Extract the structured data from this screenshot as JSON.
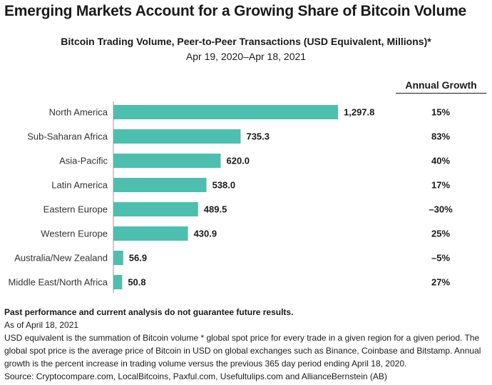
{
  "title": "Emerging Markets Account for a Growing Share of Bitcoin Volume",
  "growth_header": "Annual Growth",
  "colors": {
    "bar": "#4dbfae"
  },
  "chart_data": {
    "type": "bar",
    "orientation": "horizontal",
    "title": "Bitcoin Trading Volume, Peer-to-Peer Transactions (USD Equivalent, Millions)*",
    "subtitle": "Apr 19, 2020–Apr 18, 2021",
    "categories": [
      "North America",
      "Sub-Saharan Africa",
      "Asia-Pacific",
      "Latin America",
      "Eastern Europe",
      "Western Europe",
      "Australia/New Zealand",
      "Middle East/North Africa"
    ],
    "values": [
      1297.8,
      735.3,
      620.0,
      538.0,
      489.5,
      430.9,
      56.9,
      50.8
    ],
    "value_labels": [
      "1,297.8",
      "735.3",
      "620.0",
      "538.0",
      "489.5",
      "430.9",
      "56.9",
      "50.8"
    ],
    "annual_growth": [
      "15%",
      "83%",
      "40%",
      "17%",
      "–30%",
      "25%",
      "–5%",
      "27%"
    ],
    "xlim": [
      0,
      1297.8
    ]
  },
  "notes": {
    "disclaimer": "Past performance and current analysis do not guarantee future results.",
    "as_of": "As of April 18, 2021",
    "footnote": "USD equivalent is the summation of Bitcoin volume * global spot price for every trade in a given region for a given period. The global spot price is the average price of Bitcoin in USD on global exchanges such as Binance, Coinbase and Bitstamp. Annual growth is the percent increase in trading volume versus the previous 365 day period ending April 18, 2020.",
    "source": "Source: Cryptocompare.com, LocalBitcoins, Paxful.com, Usefultulips.com and AllianceBernstein (AB)"
  }
}
